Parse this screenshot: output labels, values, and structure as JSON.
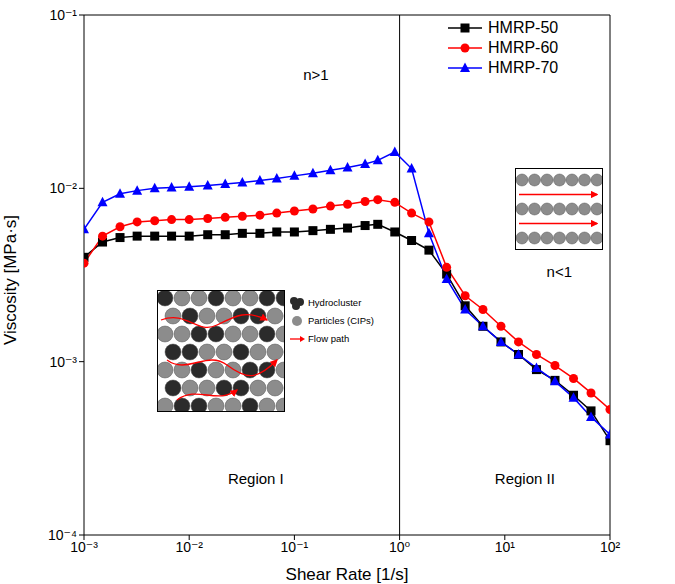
{
  "chart_data": {
    "type": "line",
    "x_label": "Shear Rate [1/s]",
    "y_label": "Viscosity [MPa·s]",
    "log": true,
    "grid": false,
    "legend": "upper right",
    "x": [
      0.001,
      0.0015,
      0.0022,
      0.0032,
      0.0047,
      0.0068,
      0.01,
      0.015,
      0.022,
      0.032,
      0.047,
      0.068,
      0.1,
      0.15,
      0.22,
      0.32,
      0.47,
      0.62,
      0.9,
      1.3,
      1.9,
      2.8,
      4.2,
      6.2,
      9.2,
      13.5,
      20,
      30,
      45,
      66,
      100
    ],
    "series": [
      {
        "name": "HMRP-50",
        "color": "#000000",
        "marker": "square",
        "values": [
          0.004,
          0.0049,
          0.0052,
          0.0053,
          0.0053,
          0.0053,
          0.0053,
          0.0054,
          0.0054,
          0.0055,
          0.0055,
          0.0056,
          0.0056,
          0.0057,
          0.0058,
          0.0059,
          0.0061,
          0.0062,
          0.0056,
          0.005,
          0.0044,
          0.0032,
          0.0021,
          0.0016,
          0.0013,
          0.0011,
          0.0009,
          0.00078,
          0.00064,
          0.00052,
          0.00035
        ]
      },
      {
        "name": "HMRP-60",
        "color": "#ff0000",
        "marker": "circle",
        "values": [
          0.0037,
          0.0053,
          0.006,
          0.0064,
          0.0065,
          0.0066,
          0.0066,
          0.0067,
          0.0068,
          0.0069,
          0.007,
          0.0072,
          0.0074,
          0.0076,
          0.0079,
          0.0081,
          0.0084,
          0.0086,
          0.0083,
          0.0072,
          0.0064,
          0.0035,
          0.0024,
          0.002,
          0.0016,
          0.0013,
          0.0011,
          0.00095,
          0.0008,
          0.00066,
          0.00053
        ]
      },
      {
        "name": "HMRP-70",
        "color": "#0000ff",
        "marker": "triangle",
        "values": [
          0.0058,
          0.0083,
          0.0093,
          0.0097,
          0.01,
          0.0101,
          0.0102,
          0.0104,
          0.0106,
          0.0108,
          0.0111,
          0.0114,
          0.0118,
          0.0122,
          0.0127,
          0.0132,
          0.0138,
          0.0145,
          0.0162,
          0.013,
          0.0055,
          0.003,
          0.002,
          0.0016,
          0.0013,
          0.0011,
          0.00092,
          0.00077,
          0.00062,
          0.00048,
          0.00038
        ]
      }
    ],
    "xlim": [
      0.001,
      100
    ],
    "xticks": [
      {
        "value": 0.001,
        "label": "10⁻³"
      },
      {
        "value": 0.01,
        "label": "10⁻²"
      },
      {
        "value": 0.1,
        "label": "10⁻¹"
      },
      {
        "value": 1,
        "label": "10⁰"
      },
      {
        "value": 10,
        "label": "10¹"
      },
      {
        "value": 100,
        "label": "10²"
      }
    ],
    "ylim": [
      0.0001,
      0.1
    ],
    "yticks": [
      {
        "value": 0.0001,
        "label": "10⁻⁴"
      },
      {
        "value": 0.001,
        "label": "10⁻³"
      },
      {
        "value": 0.01,
        "label": "10⁻²"
      },
      {
        "value": 0.1,
        "label": "10⁻¹"
      }
    ],
    "region_boundary": 1,
    "annotations": [
      {
        "text": "n>1",
        "x": 0.16,
        "y": 0.045
      },
      {
        "text": "n<1",
        "x": 33,
        "y": 0.0033
      },
      {
        "text": "Region I",
        "x": 0.043,
        "y": 0.00021
      },
      {
        "text": "Region II",
        "x": 15.5,
        "y": 0.00021
      }
    ],
    "inset_legend": [
      "Hydrocluster",
      "Particles (CIPs)",
      "Flow path"
    ]
  }
}
